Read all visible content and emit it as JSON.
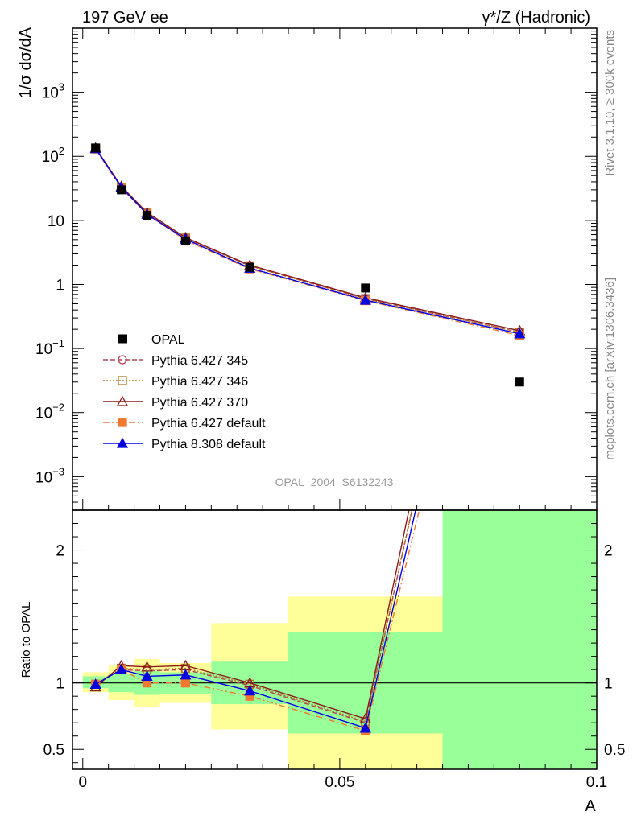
{
  "chart_data": {
    "type": "line",
    "header_left": "197 GeV ee",
    "header_right": "γ*/Z (Hadronic)",
    "ylabel": "1/σ dσ/dA",
    "xlabel": "A",
    "ratio_ylabel": "Ratio to OPAL",
    "analysis_label": "OPAL_2004_S6132243",
    "side_label_top": "Rivet 3.1.10, ≥ 300k events",
    "side_label_bottom": "mcplots.cern.ch [arXiv:1306.3436]",
    "y_scale": "log",
    "ylim": [
      0.0003,
      10000
    ],
    "xlim": [
      -0.002,
      0.1
    ],
    "ratio_ylim": [
      0.35,
      2.3
    ],
    "x_ticks": [
      {
        "v": 0,
        "label": "0"
      },
      {
        "v": 0.05,
        "label": "0.05"
      },
      {
        "v": 0.1,
        "label": "0.1"
      }
    ],
    "ratio_ticks": [
      {
        "v": 0.5,
        "label": "0.5"
      },
      {
        "v": 1,
        "label": "1"
      },
      {
        "v": 2,
        "label": "2"
      }
    ],
    "y_ticks": [
      {
        "v": 0.001,
        "label": "10",
        "exp": "−3"
      },
      {
        "v": 0.01,
        "label": "10",
        "exp": "−2"
      },
      {
        "v": 0.1,
        "label": "10",
        "exp": "−1"
      },
      {
        "v": 1,
        "label": "1",
        "exp": ""
      },
      {
        "v": 10,
        "label": "10",
        "exp": ""
      },
      {
        "v": 100,
        "label": "10",
        "exp": "2"
      },
      {
        "v": 1000,
        "label": "10",
        "exp": "3"
      }
    ],
    "data": {
      "name": "OPAL",
      "color": "#000000",
      "bins": [
        [
          0.0,
          0.005
        ],
        [
          0.005,
          0.01
        ],
        [
          0.01,
          0.015
        ],
        [
          0.015,
          0.025
        ],
        [
          0.025,
          0.04
        ],
        [
          0.04,
          0.07
        ],
        [
          0.07,
          0.1
        ]
      ],
      "x": [
        0.0025,
        0.0075,
        0.0125,
        0.02,
        0.0325,
        0.055,
        0.085
      ],
      "y": [
        135,
        30,
        12,
        4.8,
        1.85,
        0.88,
        0.03
      ],
      "band_inner": [
        [
          0.96,
          1.05
        ],
        [
          0.93,
          1.07
        ],
        [
          0.91,
          1.09
        ],
        [
          0.92,
          1.08
        ],
        [
          0.84,
          1.16
        ],
        [
          0.62,
          1.38
        ],
        [
          0.35,
          2.3
        ]
      ],
      "band_outer": [
        [
          0.93,
          1.08
        ],
        [
          0.87,
          1.13
        ],
        [
          0.82,
          1.18
        ],
        [
          0.85,
          1.15
        ],
        [
          0.65,
          1.45
        ],
        [
          0.35,
          1.65
        ],
        [
          0.35,
          2.3
        ]
      ]
    },
    "series": [
      {
        "name": "Pythia 6.427 345",
        "color": "#b5444f",
        "dash": "6,3",
        "marker": "circle",
        "fill": "none",
        "y": [
          133,
          33,
          13,
          5.3,
          1.95,
          0.6,
          0.18
        ],
        "ratio": [
          0.99,
          1.1,
          1.09,
          1.1,
          0.98,
          0.7,
          6.0
        ]
      },
      {
        "name": "Pythia 6.427 346",
        "color": "#b07a2a",
        "dash": "2,2",
        "marker": "square",
        "fill": "none",
        "y": [
          133,
          33,
          13,
          5.3,
          1.95,
          0.6,
          0.18
        ],
        "ratio": [
          0.99,
          1.11,
          1.1,
          1.11,
          0.99,
          0.71,
          6.0
        ]
      },
      {
        "name": "Pythia 6.427 370",
        "color": "#8b1a1a",
        "dash": "",
        "marker": "triangle",
        "fill": "none",
        "y": [
          135,
          34,
          13.3,
          5.4,
          2.0,
          0.62,
          0.19
        ],
        "ratio": [
          0.97,
          1.13,
          1.12,
          1.13,
          1.0,
          0.73,
          6.3
        ]
      },
      {
        "name": "Pythia 6.427 default",
        "color": "#f07830",
        "dash": "8,3,2,3",
        "marker": "square",
        "fill": "filled",
        "y": [
          130,
          32,
          12.5,
          4.9,
          1.75,
          0.56,
          0.16
        ],
        "ratio": [
          0.99,
          1.1,
          1.0,
          1.0,
          0.9,
          0.64,
          5.4
        ]
      },
      {
        "name": "Pythia 8.308 default",
        "color": "#0000e0",
        "dash": "",
        "marker": "triangle",
        "fill": "filled",
        "y": [
          132,
          33,
          12.5,
          5.1,
          1.8,
          0.57,
          0.17
        ],
        "ratio": [
          0.99,
          1.1,
          1.05,
          1.06,
          0.94,
          0.66,
          5.7
        ]
      }
    ],
    "legend_position": "lower-left"
  }
}
